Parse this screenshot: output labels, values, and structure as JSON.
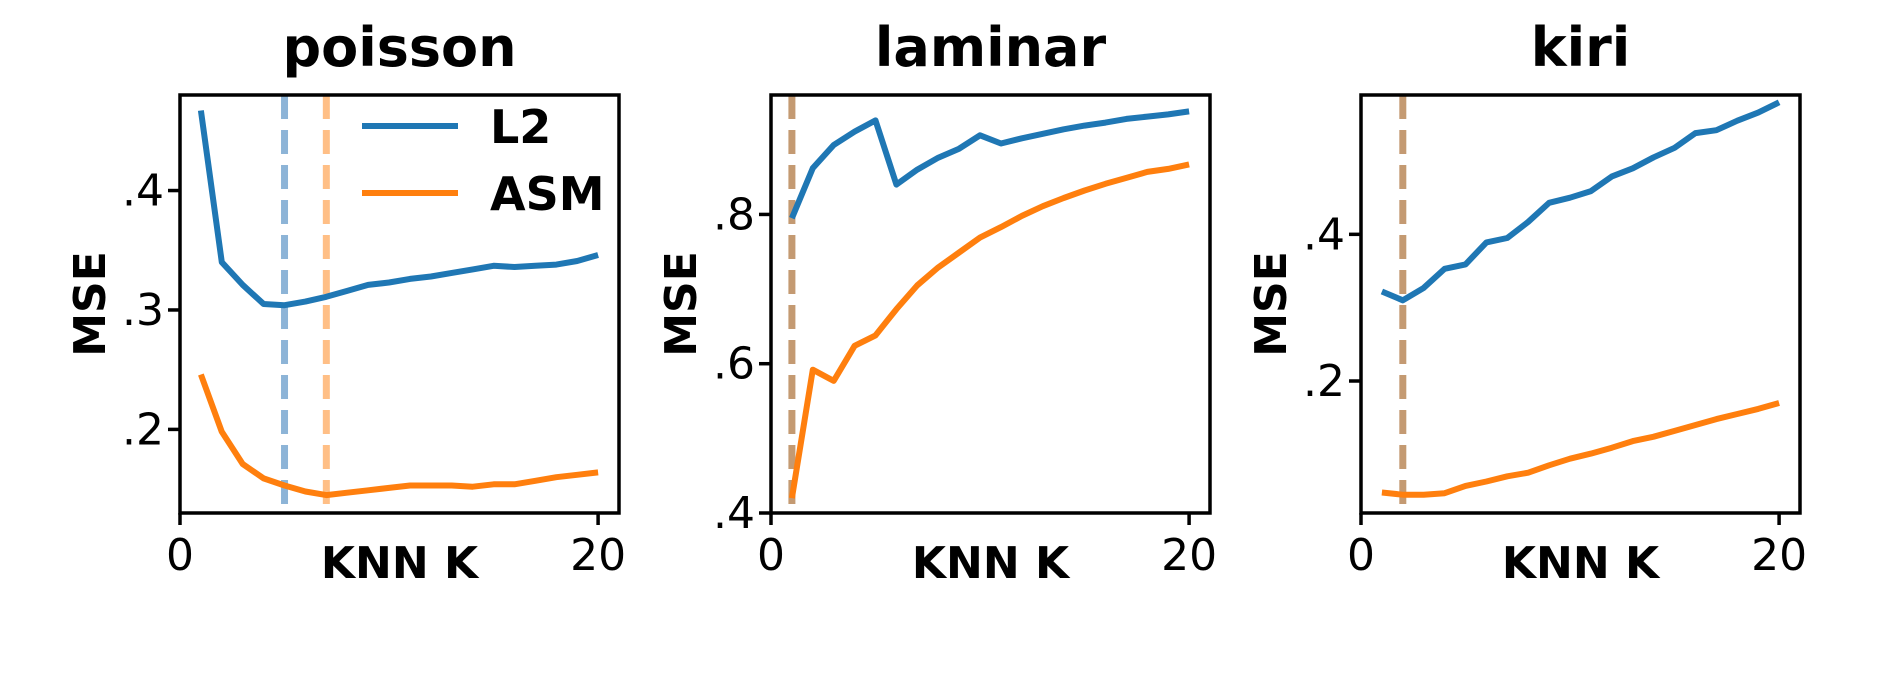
{
  "colors": {
    "L2": "#1f77b4",
    "ASM": "#ff7f0e",
    "L2_vline": "#8db4d7",
    "ASM_vline": "#ffbf86",
    "overlap_vline": "#c49a72"
  },
  "legend": {
    "entries": [
      "L2",
      "ASM"
    ],
    "placement": "upper-right of first panel"
  },
  "chart_data": [
    {
      "type": "line",
      "title": "poisson",
      "xlabel": "KNN K",
      "ylabel": "MSE",
      "xlim": [
        0,
        21
      ],
      "ylim": [
        0.13,
        0.48
      ],
      "xticks": [
        0,
        20
      ],
      "xtick_labels": [
        "0",
        "20"
      ],
      "yticks": [
        0.2,
        0.3,
        0.4
      ],
      "ytick_labels": [
        ".2",
        ".3",
        ".4"
      ],
      "x": [
        1,
        2,
        3,
        4,
        5,
        6,
        7,
        8,
        9,
        10,
        11,
        12,
        13,
        14,
        15,
        16,
        17,
        18,
        19,
        20
      ],
      "series": [
        {
          "name": "L2",
          "values": [
            0.467,
            0.34,
            0.321,
            0.305,
            0.304,
            0.307,
            0.311,
            0.316,
            0.321,
            0.323,
            0.326,
            0.328,
            0.331,
            0.334,
            0.337,
            0.336,
            0.337,
            0.338,
            0.341,
            0.346
          ]
        },
        {
          "name": "ASM",
          "values": [
            0.246,
            0.198,
            0.171,
            0.159,
            0.153,
            0.148,
            0.145,
            0.147,
            0.149,
            0.151,
            0.153,
            0.153,
            0.153,
            0.152,
            0.154,
            0.154,
            0.157,
            0.16,
            0.162,
            0.164
          ]
        }
      ],
      "vlines": [
        {
          "series": "L2",
          "x": 5,
          "style": "dashed"
        },
        {
          "series": "ASM",
          "x": 7,
          "style": "dashed"
        }
      ],
      "legend": true
    },
    {
      "type": "line",
      "title": "laminar",
      "xlabel": "KNN K",
      "ylabel": "MSE",
      "xlim": [
        0,
        21
      ],
      "ylim": [
        0.4,
        0.96
      ],
      "xticks": [
        0,
        20
      ],
      "xtick_labels": [
        "0",
        "20"
      ],
      "yticks": [
        0.4,
        0.6,
        0.8
      ],
      "ytick_labels": [
        ".4",
        ".6",
        ".8"
      ],
      "x": [
        1,
        2,
        3,
        4,
        5,
        6,
        7,
        8,
        9,
        10,
        11,
        12,
        13,
        14,
        15,
        16,
        17,
        18,
        19,
        20
      ],
      "series": [
        {
          "name": "L2",
          "values": [
            0.795,
            0.862,
            0.893,
            0.911,
            0.926,
            0.84,
            0.86,
            0.876,
            0.888,
            0.906,
            0.895,
            0.902,
            0.908,
            0.914,
            0.919,
            0.923,
            0.928,
            0.931,
            0.934,
            0.938
          ]
        },
        {
          "name": "ASM",
          "values": [
            0.42,
            0.592,
            0.577,
            0.624,
            0.638,
            0.673,
            0.705,
            0.729,
            0.749,
            0.769,
            0.783,
            0.798,
            0.811,
            0.822,
            0.832,
            0.841,
            0.849,
            0.857,
            0.861,
            0.867
          ]
        }
      ],
      "vlines": [
        {
          "series": "overlap",
          "x": 1,
          "style": "dashed"
        }
      ],
      "legend": false
    },
    {
      "type": "line",
      "title": "kiri",
      "xlabel": "KNN K",
      "ylabel": "MSE",
      "xlim": [
        0,
        21
      ],
      "ylim": [
        0.02,
        0.59
      ],
      "xticks": [
        0,
        20
      ],
      "xtick_labels": [
        "0",
        "20"
      ],
      "yticks": [
        0.2,
        0.4
      ],
      "ytick_labels": [
        ".2",
        ".4"
      ],
      "x": [
        1,
        2,
        3,
        4,
        5,
        6,
        7,
        8,
        9,
        10,
        11,
        12,
        13,
        14,
        15,
        16,
        17,
        18,
        19,
        20
      ],
      "series": [
        {
          "name": "L2",
          "values": [
            0.322,
            0.31,
            0.327,
            0.353,
            0.359,
            0.389,
            0.395,
            0.417,
            0.443,
            0.45,
            0.459,
            0.479,
            0.49,
            0.505,
            0.518,
            0.538,
            0.542,
            0.555,
            0.566,
            0.58
          ]
        },
        {
          "name": "ASM",
          "values": [
            0.048,
            0.045,
            0.045,
            0.047,
            0.057,
            0.063,
            0.07,
            0.075,
            0.085,
            0.094,
            0.101,
            0.109,
            0.118,
            0.124,
            0.132,
            0.14,
            0.148,
            0.155,
            0.162,
            0.17
          ]
        }
      ],
      "vlines": [
        {
          "series": "overlap",
          "x": 2,
          "style": "dashed"
        }
      ],
      "legend": false
    }
  ]
}
